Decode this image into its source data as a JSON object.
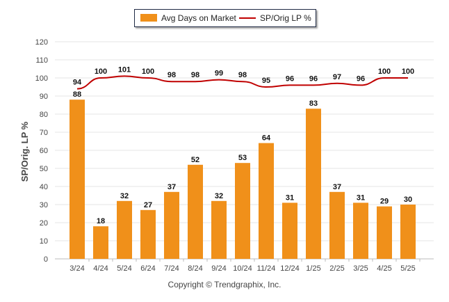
{
  "chart_data": {
    "type": "bar",
    "categories": [
      "3/24",
      "4/24",
      "5/24",
      "6/24",
      "7/24",
      "8/24",
      "9/24",
      "10/24",
      "11/24",
      "12/24",
      "1/25",
      "2/25",
      "3/25",
      "4/25",
      "5/25"
    ],
    "series": [
      {
        "name": "Avg Days on Market",
        "type": "bar",
        "color": "#f0901a",
        "values": [
          88,
          18,
          32,
          27,
          37,
          52,
          32,
          53,
          64,
          31,
          83,
          37,
          31,
          29,
          30
        ]
      },
      {
        "name": "SP/Orig LP %",
        "type": "line",
        "color": "#c00000",
        "values": [
          94,
          100,
          101,
          100,
          98,
          98,
          99,
          98,
          95,
          96,
          96,
          97,
          96,
          100,
          100
        ]
      }
    ],
    "ylabel": "SP/Orig. LP %",
    "xlabel": "",
    "ylim": [
      0,
      120
    ],
    "yticks": [
      0,
      10,
      20,
      30,
      40,
      50,
      60,
      70,
      80,
      90,
      100,
      110,
      120
    ],
    "grid": true,
    "legend": "top-center"
  },
  "footer": {
    "copyright": "Copyright © Trendgraphix, Inc."
  }
}
